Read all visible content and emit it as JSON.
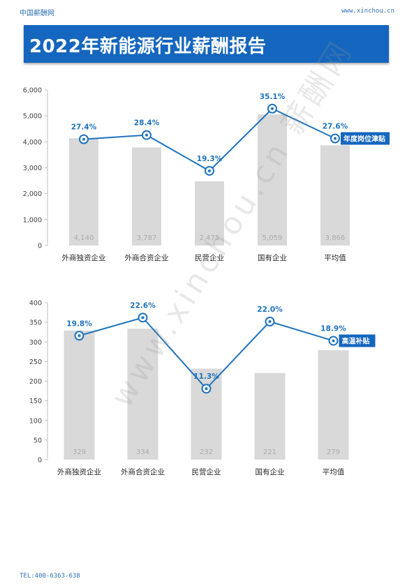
{
  "header": {
    "left": "中国薪酬网",
    "right": "www.xinchou.cn"
  },
  "title": "2022年新能源行业薪酬报告",
  "footer": "TEL:400-6363-638",
  "watermark": "www.xinchou.cn 薪酬网",
  "colors": {
    "accent": "#1466be",
    "bar": "#d9d9d9",
    "line": "#1e73be"
  },
  "chart_data": [
    {
      "type": "bar",
      "categories": [
        "外商独资企业",
        "外商合资企业",
        "民营企业",
        "国有企业",
        "平均值"
      ],
      "ylim": [
        0,
        6000
      ],
      "yticks": [
        0,
        1000,
        2000,
        3000,
        4000,
        5000,
        6000
      ],
      "ytick_labels": [
        "0",
        "1,000",
        "2,000",
        "3,000",
        "4,000",
        "5,000",
        "6,000"
      ],
      "bar_values": [
        4140,
        3787,
        2475,
        5059,
        3866
      ],
      "bar_labels": [
        "4,140",
        "3,787",
        "2,475",
        "5,059",
        "3,866"
      ],
      "line_y": [
        4100,
        4260,
        2880,
        5280,
        4130
      ],
      "line_labels": [
        "27.4%",
        "28.4%",
        "19.3%",
        "35.1%",
        "27.6%"
      ],
      "legend": "年度岗位津贴",
      "grid": false
    },
    {
      "type": "bar",
      "categories": [
        "外商独资企业",
        "外商合资企业",
        "民营企业",
        "国有企业",
        "平均值"
      ],
      "ylim": [
        0,
        400
      ],
      "yticks": [
        0,
        50,
        100,
        150,
        200,
        250,
        300,
        350,
        400
      ],
      "ytick_labels": [
        "0",
        "50",
        "100",
        "150",
        "200",
        "250",
        "300",
        "350",
        "400"
      ],
      "bar_values": [
        329,
        334,
        232,
        221,
        279
      ],
      "bar_labels": [
        "329",
        "334",
        "232",
        "221",
        "279"
      ],
      "line_y": [
        316,
        362,
        181,
        352,
        303
      ],
      "line_labels": [
        "19.8%",
        "22.6%",
        "11.3%",
        "22.0%",
        "18.9%"
      ],
      "legend": "高温补贴",
      "grid": false
    }
  ]
}
